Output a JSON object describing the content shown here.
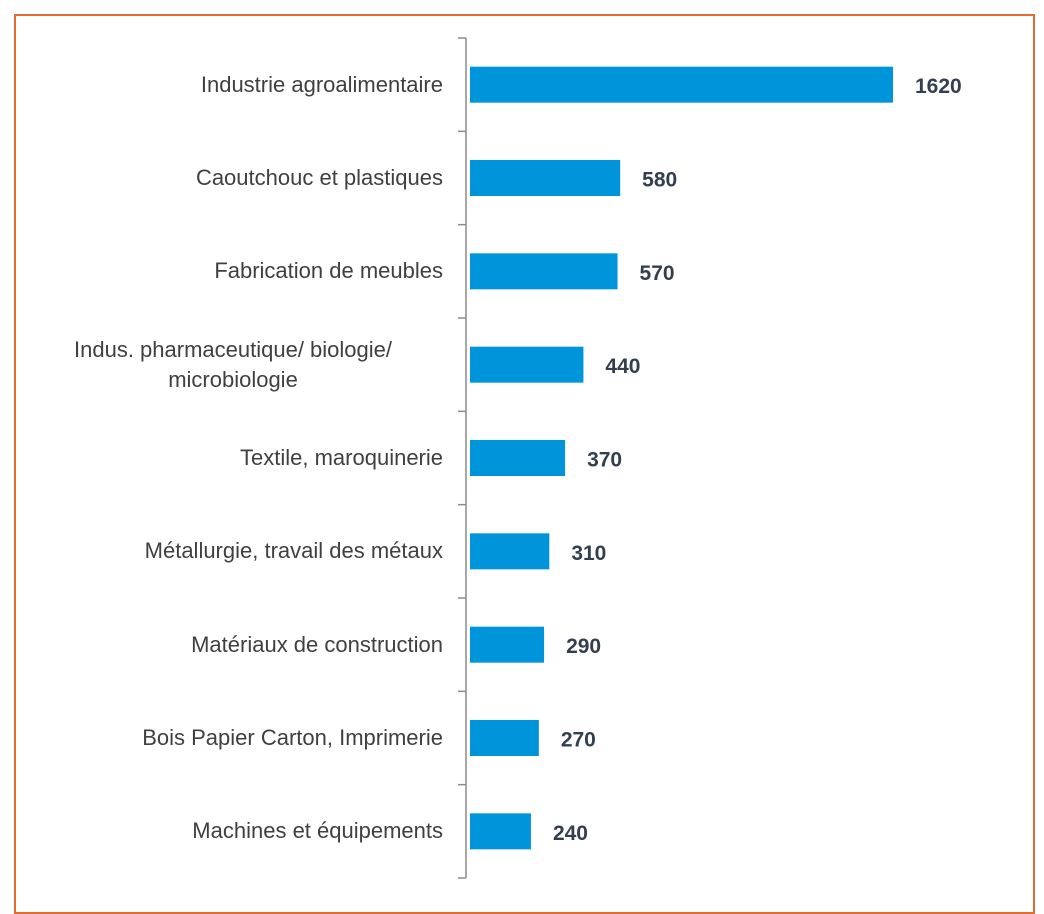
{
  "chart_data": {
    "type": "bar",
    "orientation": "horizontal",
    "categories": [
      "Industrie agroalimentaire",
      "Caoutchouc et plastiques",
      "Fabrication de meubles",
      "Indus. pharmaceutique/ biologie/ microbiologie",
      "Textile, maroquinerie",
      "Métallurgie, travail des métaux",
      "Matériaux de construction",
      "Bois Papier Carton, Imprimerie",
      "Machines et équipements"
    ],
    "values": [
      1620,
      580,
      570,
      440,
      370,
      310,
      290,
      270,
      240
    ],
    "color": "#0095da"
  }
}
